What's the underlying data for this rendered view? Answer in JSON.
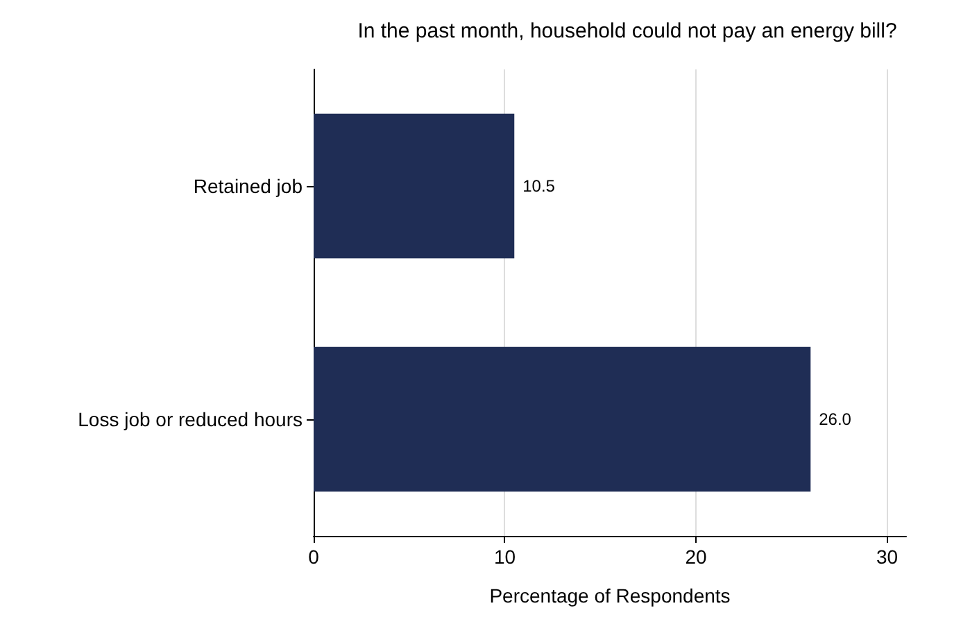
{
  "chart_data": {
    "type": "bar",
    "orientation": "horizontal",
    "title": "In the past month, household could not pay an energy bill?",
    "xlabel": "Percentage of Respondents",
    "categories": [
      "Retained job",
      "Loss job or reduced hours"
    ],
    "values": [
      10.5,
      26.0
    ],
    "value_labels": [
      "10.5",
      "26.0"
    ],
    "color": "#1f2d55",
    "xlim": [
      0,
      31
    ],
    "xticks": [
      0,
      10,
      20,
      30
    ],
    "grid": "x"
  }
}
